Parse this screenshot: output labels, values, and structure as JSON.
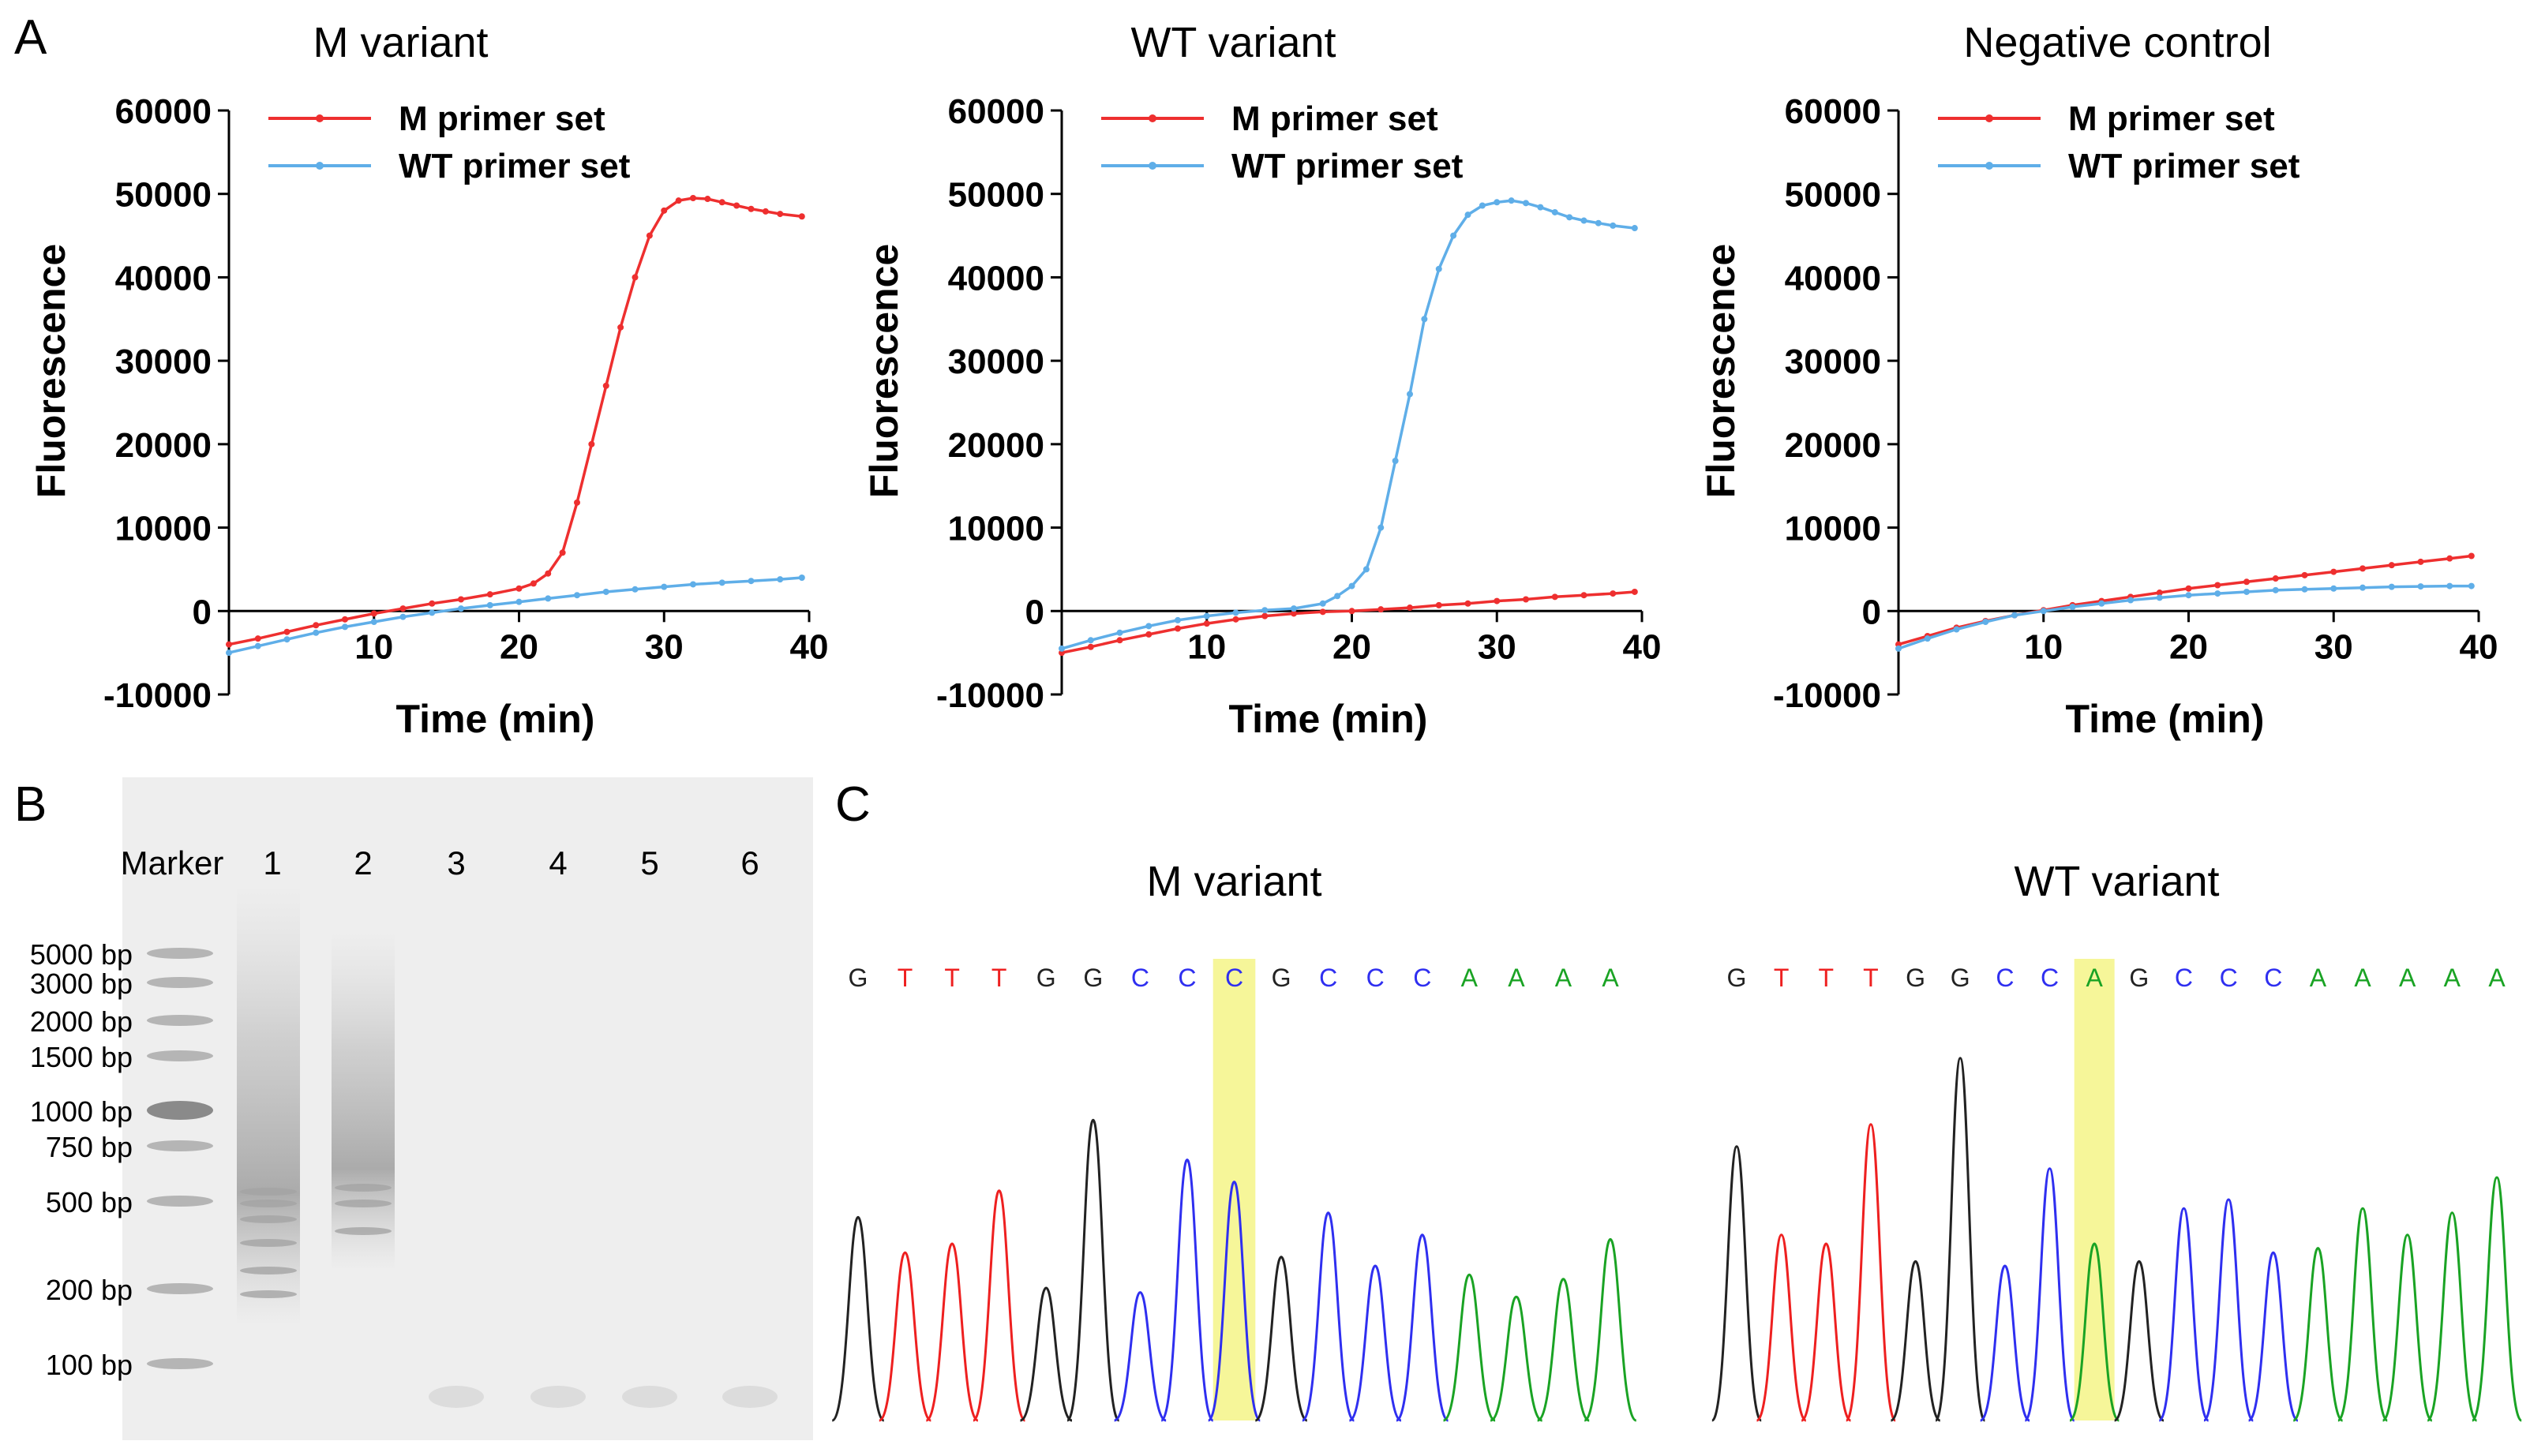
{
  "panel_labels": {
    "a": "A",
    "b": "B",
    "c": "C"
  },
  "chart_data": [
    {
      "type": "line",
      "title": "M variant",
      "xlabel": "Time (min)",
      "ylabel": "Fluorescence",
      "xlim": [
        0,
        40
      ],
      "ylim": [
        -10000,
        60000
      ],
      "xticks": [
        10,
        20,
        30,
        40
      ],
      "yticks": [
        -10000,
        0,
        10000,
        20000,
        30000,
        40000,
        50000,
        60000
      ],
      "legend": [
        "M primer set",
        "WT primer set"
      ],
      "series": [
        {
          "name": "M primer set",
          "color": "#ee2f2f",
          "x": [
            0,
            2,
            4,
            6,
            8,
            10,
            12,
            14,
            16,
            18,
            20,
            21,
            22,
            23,
            24,
            25,
            26,
            27,
            28,
            29,
            30,
            31,
            32,
            33,
            34,
            35,
            36,
            37,
            38,
            39.5
          ],
          "y": [
            -4000,
            -3300,
            -2500,
            -1700,
            -1000,
            -300,
            300,
            900,
            1400,
            2000,
            2700,
            3300,
            4500,
            7000,
            13000,
            20000,
            27000,
            34000,
            40000,
            45000,
            48000,
            49200,
            49500,
            49400,
            49000,
            48600,
            48200,
            47900,
            47600,
            47300
          ]
        },
        {
          "name": "WT primer set",
          "color": "#5faee8",
          "x": [
            0,
            2,
            4,
            6,
            8,
            10,
            12,
            14,
            16,
            18,
            20,
            22,
            24,
            26,
            28,
            30,
            32,
            34,
            36,
            38,
            39.5
          ],
          "y": [
            -5000,
            -4200,
            -3400,
            -2600,
            -1900,
            -1300,
            -700,
            -200,
            300,
            700,
            1100,
            1500,
            1900,
            2300,
            2600,
            2900,
            3200,
            3400,
            3600,
            3800,
            4000
          ]
        }
      ]
    },
    {
      "type": "line",
      "title": "WT variant",
      "xlabel": "Time (min)",
      "ylabel": "Fluorescence",
      "xlim": [
        0,
        40
      ],
      "ylim": [
        -10000,
        60000
      ],
      "xticks": [
        10,
        20,
        30,
        40
      ],
      "yticks": [
        -10000,
        0,
        10000,
        20000,
        30000,
        40000,
        50000,
        60000
      ],
      "legend": [
        "M primer set",
        "WT primer set"
      ],
      "series": [
        {
          "name": "M primer set",
          "color": "#ee2f2f",
          "x": [
            0,
            2,
            4,
            6,
            8,
            10,
            12,
            14,
            16,
            18,
            20,
            22,
            24,
            26,
            28,
            30,
            32,
            34,
            36,
            38,
            39.5
          ],
          "y": [
            -5000,
            -4300,
            -3500,
            -2800,
            -2100,
            -1500,
            -1000,
            -600,
            -300,
            -100,
            0,
            200,
            400,
            700,
            900,
            1200,
            1400,
            1700,
            1900,
            2100,
            2300
          ]
        },
        {
          "name": "WT primer set",
          "color": "#5faee8",
          "x": [
            0,
            2,
            4,
            6,
            8,
            10,
            12,
            14,
            16,
            18,
            19,
            20,
            21,
            22,
            23,
            24,
            25,
            26,
            27,
            28,
            29,
            30,
            31,
            32,
            33,
            34,
            35,
            36,
            37,
            38,
            39.5
          ],
          "y": [
            -4500,
            -3500,
            -2600,
            -1800,
            -1100,
            -600,
            -200,
            100,
            300,
            900,
            1800,
            3000,
            5000,
            10000,
            18000,
            26000,
            35000,
            41000,
            45000,
            47500,
            48600,
            49000,
            49200,
            48900,
            48400,
            47800,
            47200,
            46800,
            46500,
            46200,
            45900
          ]
        }
      ]
    },
    {
      "type": "line",
      "title": "Negative control",
      "xlabel": "Time (min)",
      "ylabel": "Fluorescence",
      "xlim": [
        0,
        40
      ],
      "ylim": [
        -10000,
        60000
      ],
      "xticks": [
        10,
        20,
        30,
        40
      ],
      "yticks": [
        -10000,
        0,
        10000,
        20000,
        30000,
        40000,
        50000,
        60000
      ],
      "legend": [
        "M primer set",
        "WT primer set"
      ],
      "series": [
        {
          "name": "M primer set",
          "color": "#ee2f2f",
          "x": [
            0,
            2,
            4,
            6,
            8,
            10,
            12,
            14,
            16,
            18,
            20,
            22,
            24,
            26,
            28,
            30,
            32,
            34,
            36,
            38,
            39.5
          ],
          "y": [
            -4000,
            -3000,
            -2000,
            -1200,
            -500,
            100,
            700,
            1200,
            1700,
            2200,
            2700,
            3100,
            3500,
            3900,
            4300,
            4700,
            5100,
            5500,
            5900,
            6300,
            6600
          ]
        },
        {
          "name": "WT primer set",
          "color": "#5faee8",
          "x": [
            0,
            2,
            4,
            6,
            8,
            10,
            12,
            14,
            16,
            18,
            20,
            22,
            24,
            26,
            28,
            30,
            32,
            34,
            36,
            38,
            39.5
          ],
          "y": [
            -4500,
            -3300,
            -2200,
            -1300,
            -500,
            0,
            500,
            900,
            1300,
            1600,
            1900,
            2100,
            2300,
            2500,
            2600,
            2700,
            2800,
            2900,
            2950,
            3000,
            3000
          ]
        }
      ]
    }
  ],
  "gel": {
    "lanes": [
      "Marker",
      "1",
      "2",
      "3",
      "4",
      "5",
      "6"
    ],
    "ladder": [
      "5000 bp",
      "3000 bp",
      "2000 bp",
      "1500 bp",
      "1000 bp",
      "750 bp",
      "500 bp",
      "200 bp",
      "100 bp"
    ]
  },
  "sequencing": [
    {
      "title": "M variant",
      "bases": [
        "G",
        "T",
        "T",
        "T",
        "G",
        "G",
        "C",
        "C",
        "C",
        "G",
        "C",
        "C",
        "C",
        "A",
        "A",
        "A",
        "A"
      ],
      "highlight_index": 8
    },
    {
      "title": "WT variant",
      "bases": [
        "G",
        "T",
        "T",
        "T",
        "G",
        "G",
        "C",
        "C",
        "A",
        "G",
        "C",
        "C",
        "C",
        "A",
        "A",
        "A",
        "A",
        "A"
      ],
      "highlight_index": 8
    }
  ],
  "colors": {
    "red": "#ee2f2f",
    "blue": "#5faee8",
    "A": "#1aa324",
    "C": "#2f2ff0",
    "G": "#222222",
    "T": "#ee2020",
    "highlight": "#f4f487"
  }
}
